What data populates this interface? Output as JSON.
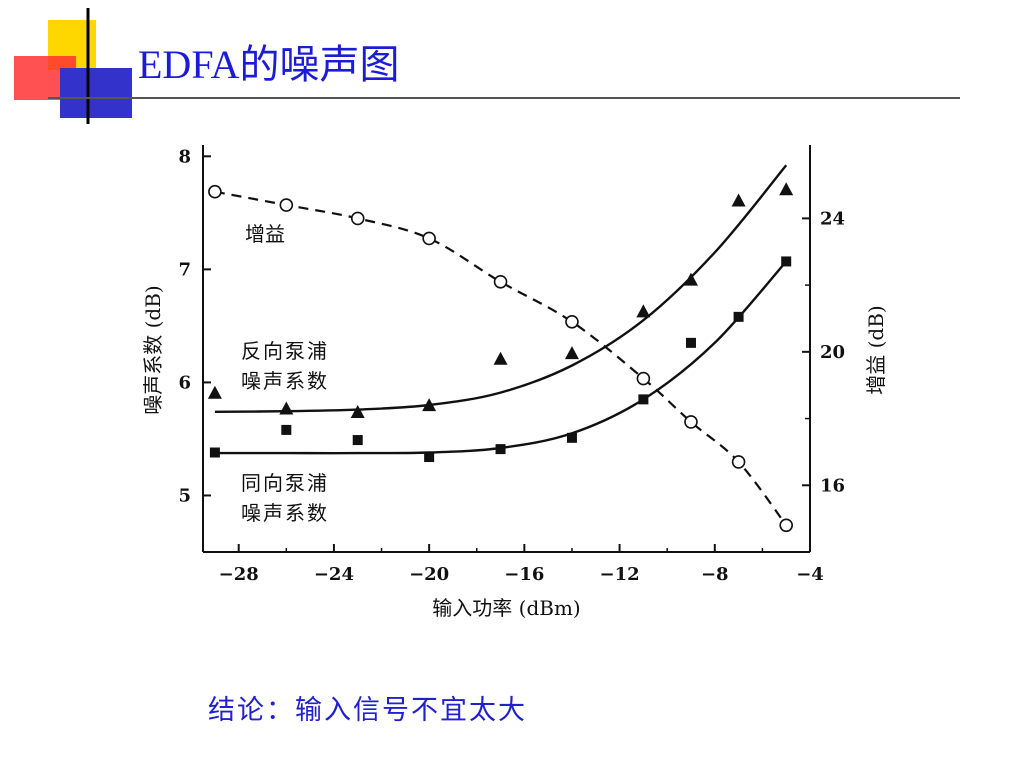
{
  "slide": {
    "title": "EDFA的噪声图",
    "conclusion": "结论：输入信号不宜太大",
    "title_color": "#1c1cd8"
  },
  "chart_data": {
    "type": "scatter",
    "xlabel": "输入功率 (dBm)",
    "ylabel_left": "噪声系数 (dB)",
    "ylabel_right": "增益 (dB)",
    "xlim": [
      -29.5,
      -4
    ],
    "ylim_left": [
      4.5,
      8.1
    ],
    "ylim_right": [
      14.0,
      26.2
    ],
    "x_ticks": [
      -28,
      -24,
      -20,
      -16,
      -12,
      -8,
      -4
    ],
    "x_tick_labels": [
      "−28",
      "−24",
      "−20",
      "−16",
      "−12",
      "−8",
      "−4"
    ],
    "y_left_ticks": [
      5,
      6,
      7,
      8
    ],
    "y_left_tick_labels": [
      "5",
      "6",
      "7",
      "8"
    ],
    "y_right_ticks": [
      16,
      20,
      24
    ],
    "y_right_tick_labels": [
      "16",
      "20",
      "24"
    ],
    "grid": false,
    "series": [
      {
        "name": "增益",
        "axis": "right",
        "marker": "open-circle",
        "line": "dashed",
        "x": [
          -29,
          -26,
          -23,
          -20,
          -17,
          -14,
          -11,
          -9,
          -7,
          -5
        ],
        "y": [
          24.8,
          24.4,
          24.0,
          23.4,
          22.1,
          20.9,
          19.2,
          17.9,
          16.7,
          14.8
        ]
      },
      {
        "name": "反向泵浦噪声系数",
        "label_lines": [
          "反向泵浦",
          "噪声系数"
        ],
        "axis": "left",
        "marker": "filled-triangle",
        "line": "solid",
        "x": [
          -29,
          -26,
          -23,
          -20,
          -17,
          -14,
          -11,
          -9,
          -7,
          -5
        ],
        "y": [
          5.9,
          5.76,
          5.73,
          5.79,
          6.2,
          6.25,
          6.62,
          6.9,
          7.6,
          7.7
        ]
      },
      {
        "name": "同向泵浦噪声系数",
        "label_lines": [
          "同向泵浦",
          "噪声系数"
        ],
        "axis": "left",
        "marker": "filled-square",
        "line": "solid",
        "x": [
          -29,
          -26,
          -23,
          -20,
          -17,
          -14,
          -11,
          -9,
          -7,
          -5
        ],
        "y": [
          5.38,
          5.58,
          5.49,
          5.34,
          5.41,
          5.51,
          5.85,
          6.35,
          6.58,
          7.07
        ]
      }
    ],
    "fit_curves": [
      {
        "series": "反向泵浦噪声系数",
        "x": [
          -29,
          -26,
          -23,
          -20,
          -17,
          -14,
          -11,
          -8,
          -5
        ],
        "y": [
          5.74,
          5.745,
          5.76,
          5.8,
          5.91,
          6.15,
          6.55,
          7.15,
          7.92
        ]
      },
      {
        "series": "同向泵浦噪声系数",
        "x": [
          -29,
          -26,
          -23,
          -20,
          -17,
          -14,
          -11,
          -8,
          -5
        ],
        "y": [
          5.375,
          5.375,
          5.375,
          5.38,
          5.42,
          5.55,
          5.85,
          6.35,
          7.07
        ]
      }
    ]
  }
}
